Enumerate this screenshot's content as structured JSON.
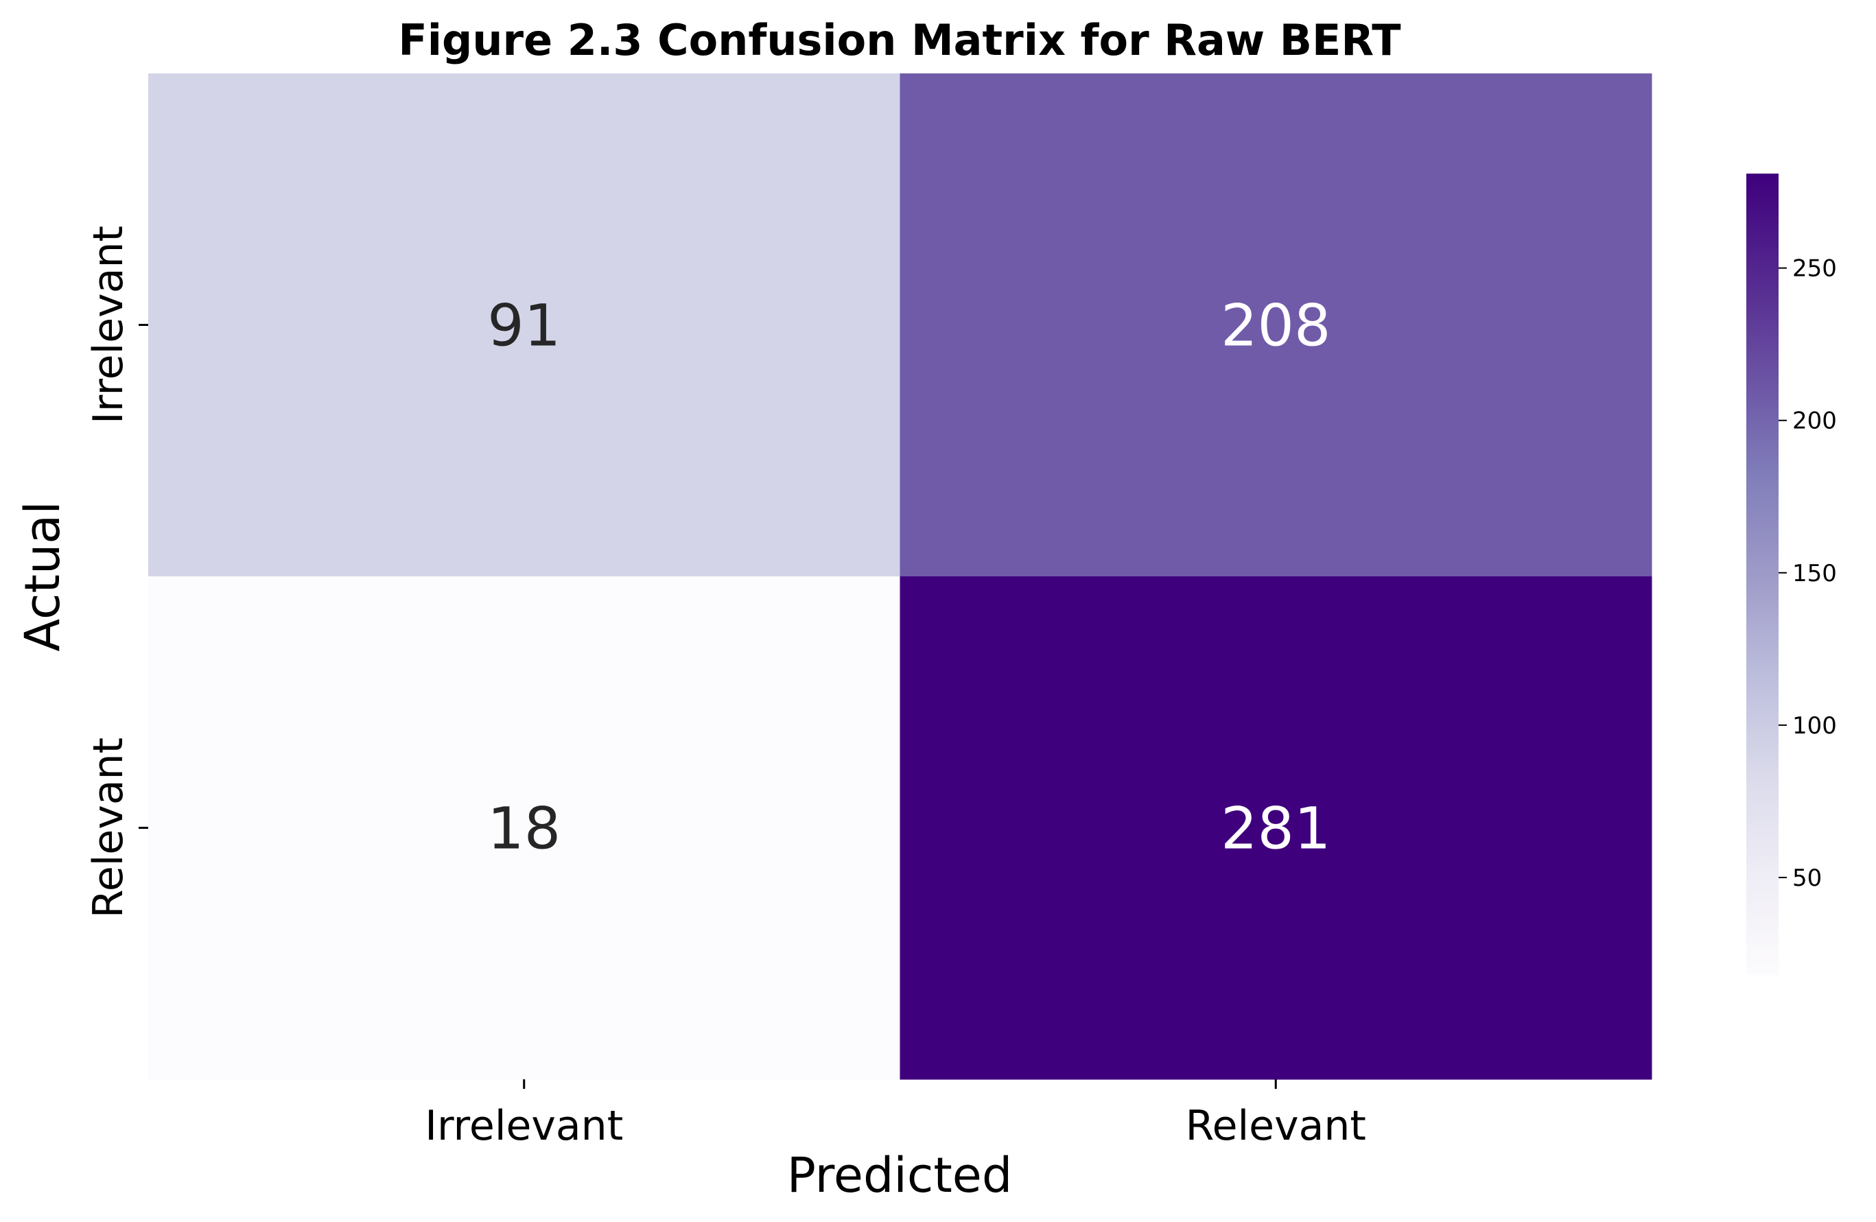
{
  "chart_data": {
    "type": "heatmap",
    "title": "Figure 2.3 Confusion Matrix for Raw BERT",
    "xlabel": "Predicted",
    "ylabel": "Actual",
    "x_categories": [
      "Irrelevant",
      "Relevant"
    ],
    "y_categories": [
      "Irrelevant",
      "Relevant"
    ],
    "values": [
      [
        91,
        208
      ],
      [
        18,
        281
      ]
    ],
    "colormap": "Purples",
    "colorbar": {
      "range": [
        18,
        281
      ],
      "ticks": [
        50,
        100,
        150,
        200,
        250
      ],
      "tick_labels": [
        "50",
        "100",
        "150",
        "200",
        "250"
      ]
    },
    "colors": {
      "low": "#fcfbfd",
      "high": "#3f007d",
      "annot_dark": "#262626",
      "annot_light": "#ffffff"
    }
  }
}
